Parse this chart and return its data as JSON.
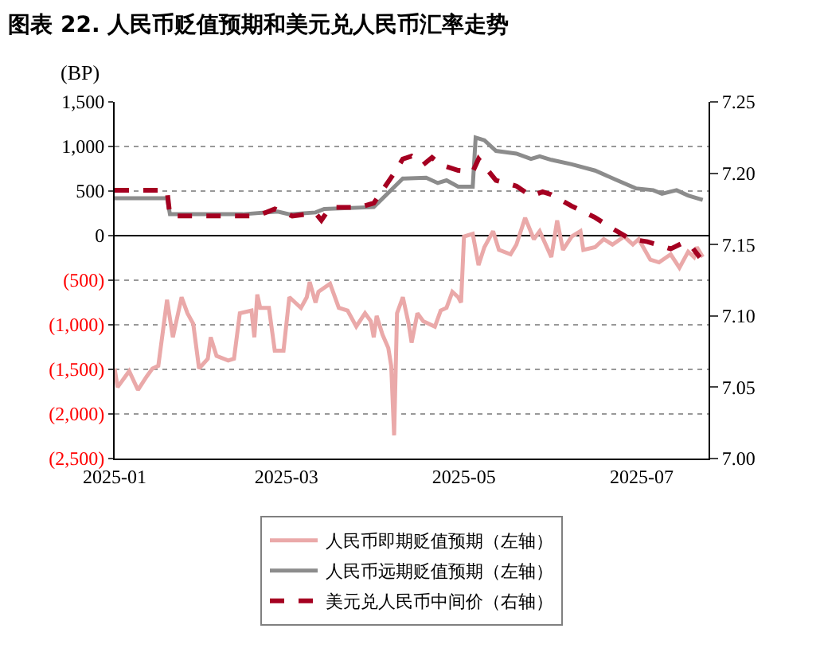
{
  "chart_data": {
    "type": "line",
    "title": "图表 22. 人民币贬值预期和美元兑人民币汇率走势",
    "ylabel": "(BP)",
    "xlim": [
      "2025-01-01",
      "2025-07-24"
    ],
    "xticks": [
      {
        "value": "2025-01-01",
        "label": "2025-01"
      },
      {
        "value": "2025-03-01",
        "label": "2025-03"
      },
      {
        "value": "2025-05-01",
        "label": "2025-05"
      },
      {
        "value": "2025-07-01",
        "label": "2025-07"
      }
    ],
    "ylim": [
      -2500,
      1500
    ],
    "yticks": [
      {
        "value": -2500,
        "label": "(2,500)"
      },
      {
        "value": -2000,
        "label": "(2,000)"
      },
      {
        "value": -1500,
        "label": "(1,500)"
      },
      {
        "value": -1000,
        "label": "(1,000)"
      },
      {
        "value": -500,
        "label": "(500)"
      },
      0,
      500,
      {
        "value": 1000,
        "label": "1,000"
      },
      {
        "value": 1500,
        "label": "1,500"
      }
    ],
    "y2lim": [
      7.0,
      7.25
    ],
    "y2ticks": [
      {
        "value": 7.0,
        "label": "7.00"
      },
      {
        "value": 7.05,
        "label": "7.05"
      },
      {
        "value": 7.1,
        "label": "7.10"
      },
      {
        "value": 7.15,
        "label": "7.15"
      },
      {
        "value": 7.2,
        "label": "7.20"
      },
      {
        "value": 7.25,
        "label": "7.25"
      }
    ],
    "grid": "y",
    "legend": "bottom",
    "series": [
      {
        "name": "人民币即期贬值预期（左轴）",
        "color": "#eaa9a9",
        "line_style": "solid",
        "x": [
          "2025-01-01",
          "2025-01-02",
          "2025-01-06",
          "2025-01-09",
          "2025-01-12",
          "2025-01-14",
          "2025-01-16",
          "2025-01-19",
          "2025-01-21",
          "2025-01-24",
          "2025-01-26",
          "2025-01-28",
          "2025-01-30",
          "2025-02-02",
          "2025-02-03",
          "2025-02-05",
          "2025-02-09",
          "2025-02-11",
          "2025-02-13",
          "2025-02-17",
          "2025-02-18",
          "2025-02-19",
          "2025-02-20",
          "2025-02-23",
          "2025-02-25",
          "2025-02-28",
          "2025-03-02",
          "2025-03-04",
          "2025-03-06",
          "2025-03-08",
          "2025-03-09",
          "2025-03-11",
          "2025-03-12",
          "2025-03-16",
          "2025-03-19",
          "2025-03-22",
          "2025-03-25",
          "2025-03-28",
          "2025-03-30",
          "2025-03-31",
          "2025-04-01",
          "2025-04-03",
          "2025-04-05",
          "2025-04-06",
          "2025-04-07",
          "2025-04-08",
          "2025-04-10",
          "2025-04-12",
          "2025-04-13",
          "2025-04-15",
          "2025-04-17",
          "2025-04-21",
          "2025-04-23",
          "2025-04-25",
          "2025-04-27",
          "2025-04-29",
          "2025-04-30",
          "2025-05-01",
          "2025-05-04",
          "2025-05-06",
          "2025-05-08",
          "2025-05-11",
          "2025-05-13",
          "2025-05-17",
          "2025-05-19",
          "2025-05-22",
          "2025-05-25",
          "2025-05-27",
          "2025-05-31",
          "2025-06-02",
          "2025-06-04",
          "2025-06-07",
          "2025-06-10",
          "2025-06-11",
          "2025-06-15",
          "2025-06-18",
          "2025-06-21",
          "2025-06-25",
          "2025-06-28",
          "2025-06-30",
          "2025-07-04",
          "2025-07-07",
          "2025-07-11",
          "2025-07-14",
          "2025-07-17",
          "2025-07-19",
          "2025-07-20",
          "2025-07-22"
        ],
        "values": [
          -1490,
          -1700,
          -1520,
          -1730,
          -1580,
          -1490,
          -1460,
          -720,
          -1140,
          -690,
          -870,
          -990,
          -1490,
          -1380,
          -1140,
          -1350,
          -1400,
          -1380,
          -870,
          -840,
          -1140,
          -660,
          -810,
          -810,
          -1290,
          -1290,
          -690,
          -750,
          -810,
          -690,
          -520,
          -750,
          -630,
          -540,
          -810,
          -840,
          -1020,
          -870,
          -960,
          -1140,
          -900,
          -1110,
          -1260,
          -1460,
          -2240,
          -870,
          -690,
          -990,
          -1200,
          -870,
          -960,
          -1020,
          -840,
          -810,
          -630,
          -690,
          -750,
          -10,
          20,
          -330,
          -130,
          50,
          -160,
          -210,
          -100,
          200,
          -40,
          50,
          -240,
          170,
          -160,
          -10,
          50,
          -160,
          -130,
          -40,
          -100,
          -10,
          -100,
          -40,
          -270,
          -300,
          -210,
          -360,
          -180,
          -240,
          -130,
          -240
        ]
      },
      {
        "name": "人民币远期贬值预期（左轴）",
        "color": "#8c8c8c",
        "line_style": "solid",
        "x": [
          "2025-01-01",
          "2025-01-19",
          "2025-01-20",
          "2025-02-14",
          "2025-02-26",
          "2025-03-02",
          "2025-03-11",
          "2025-03-14",
          "2025-03-31",
          "2025-04-10",
          "2025-04-18",
          "2025-04-22",
          "2025-04-25",
          "2025-04-29",
          "2025-05-04",
          "2025-05-05",
          "2025-05-08",
          "2025-05-12",
          "2025-05-19",
          "2025-05-24",
          "2025-05-27",
          "2025-05-31",
          "2025-06-07",
          "2025-06-15",
          "2025-06-22",
          "2025-06-29",
          "2025-07-05",
          "2025-07-08",
          "2025-07-13",
          "2025-07-17",
          "2025-07-22"
        ],
        "values": [
          420,
          420,
          240,
          240,
          270,
          240,
          260,
          300,
          320,
          640,
          650,
          590,
          620,
          550,
          550,
          1100,
          1070,
          950,
          920,
          860,
          890,
          850,
          800,
          730,
          630,
          530,
          510,
          470,
          510,
          450,
          400
        ]
      },
      {
        "name": "美元兑人民币中间价（右轴）",
        "color": "#a50021",
        "line_style": "dashed",
        "axis": "y2",
        "x": [
          "2025-01-01",
          "2025-01-19",
          "2025-01-20",
          "2025-02-19",
          "2025-02-25",
          "2025-03-03",
          "2025-03-11",
          "2025-03-13",
          "2025-03-16",
          "2025-03-26",
          "2025-03-31",
          "2025-04-03",
          "2025-04-07",
          "2025-04-10",
          "2025-04-13",
          "2025-04-17",
          "2025-04-20",
          "2025-04-23",
          "2025-04-29",
          "2025-05-04",
          "2025-05-06",
          "2025-05-12",
          "2025-05-19",
          "2025-05-24",
          "2025-05-28",
          "2025-05-31",
          "2025-06-07",
          "2025-06-15",
          "2025-06-22",
          "2025-06-27",
          "2025-07-03",
          "2025-07-08",
          "2025-07-11",
          "2025-07-15",
          "2025-07-18",
          "2025-07-21"
        ],
        "values": [
          7.188,
          7.188,
          7.17,
          7.17,
          7.175,
          7.17,
          7.172,
          7.167,
          7.176,
          7.176,
          7.179,
          7.188,
          7.2,
          7.21,
          7.212,
          7.206,
          7.211,
          7.206,
          7.202,
          7.201,
          7.21,
          7.195,
          7.191,
          7.184,
          7.187,
          7.185,
          7.177,
          7.169,
          7.16,
          7.154,
          7.152,
          7.149,
          7.147,
          7.151,
          7.149,
          7.141
        ]
      }
    ]
  }
}
